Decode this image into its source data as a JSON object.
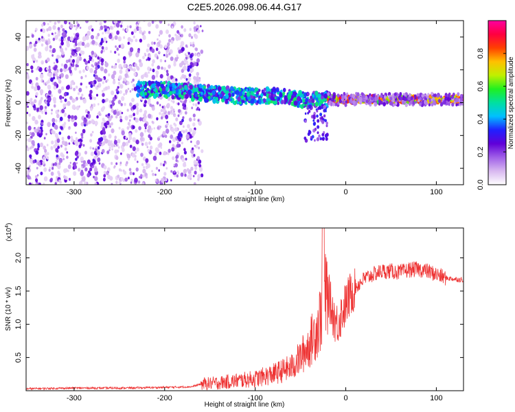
{
  "chart_data": [
    {
      "type": "heatmap",
      "title": "C2E5.2026.098.06.44.G17",
      "xlabel": "Height of straight line (km)",
      "ylabel": "Frequency (Hz)",
      "xlim": [
        -353,
        130
      ],
      "ylim": [
        -50,
        50
      ],
      "x_ticks": [
        -300,
        -200,
        -100,
        0,
        100
      ],
      "x_tick_labels": [
        "-300",
        "-200",
        "-100",
        "0",
        "100"
      ],
      "y_ticks": [
        -40,
        -20,
        0,
        20,
        40
      ],
      "y_tick_labels": [
        "-40",
        "-20",
        "0",
        "20",
        "40"
      ],
      "colorbar": {
        "label": "Normalized spectral amplitude",
        "range": [
          0,
          1
        ],
        "ticks": [
          0.0,
          0.2,
          0.4,
          0.6,
          0.8
        ],
        "tick_labels": [
          "0.0",
          "0.2",
          "0.4",
          "0.6",
          "0.8"
        ],
        "colormap": [
          "#ffffff",
          "#d8b8f0",
          "#a060e8",
          "#6000d8",
          "#2020ff",
          "#00c0ff",
          "#00e0a0",
          "#20f020",
          "#c0f000",
          "#ffc000",
          "#ff4000",
          "#ff0040",
          "#ff00a0"
        ]
      },
      "ridge": {
        "description_x": [
          -230,
          -200,
          -160,
          -120,
          -100,
          -80,
          -60,
          -40,
          -25,
          0,
          50,
          100,
          130
        ],
        "description_y": [
          8,
          8,
          6,
          4,
          4,
          4,
          3,
          1,
          2,
          2,
          2,
          2,
          2
        ]
      },
      "grid": false
    },
    {
      "type": "line",
      "xlabel": "Height of straight line (km)",
      "ylabel": "SNR (10 * v/v)",
      "y_exponent_label": "(x10",
      "y_exponent_power": "4",
      "y_exponent_close": ")",
      "xlim": [
        -353,
        130
      ],
      "ylim": [
        0,
        2.45
      ],
      "x_ticks": [
        -300,
        -200,
        -100,
        0,
        100
      ],
      "x_tick_labels": [
        "-300",
        "-200",
        "-100",
        "0",
        "100"
      ],
      "y_ticks": [
        0.5,
        1.0,
        1.5,
        2.0
      ],
      "y_tick_labels": [
        "0.5",
        "1.0",
        "1.5",
        "2.0"
      ],
      "series": [
        {
          "name": "SNR",
          "color": "#ee3333",
          "x": [
            -353,
            -300,
            -250,
            -200,
            -170,
            -160,
            -140,
            -120,
            -100,
            -80,
            -60,
            -50,
            -40,
            -30,
            -25,
            -20,
            -15,
            -10,
            -5,
            0,
            5,
            10,
            20,
            30,
            40,
            50,
            60,
            70,
            80,
            90,
            100,
            110,
            120,
            130
          ],
          "y": [
            0.03,
            0.04,
            0.04,
            0.05,
            0.06,
            0.1,
            0.12,
            0.15,
            0.18,
            0.25,
            0.35,
            0.5,
            0.7,
            1.0,
            1.3,
            1.5,
            1.2,
            1.0,
            1.15,
            1.3,
            1.45,
            1.55,
            1.68,
            1.75,
            1.8,
            1.8,
            1.78,
            1.82,
            1.83,
            1.8,
            1.75,
            1.7,
            1.68,
            1.67
          ]
        }
      ],
      "grid": false
    }
  ]
}
